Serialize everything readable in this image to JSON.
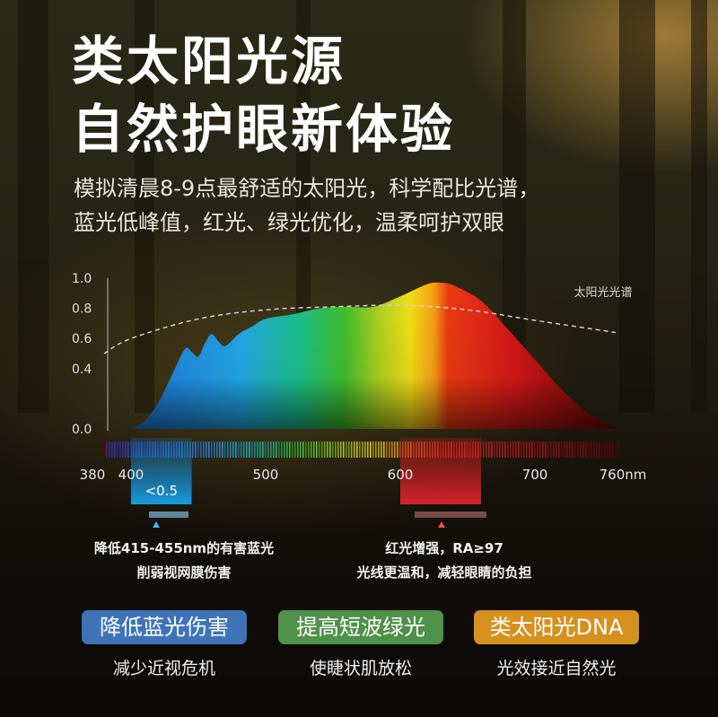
{
  "headline": {
    "line1": "类太阳光源",
    "line2": "自然护眼新体验"
  },
  "subtitle": {
    "line1": "模拟清晨8-9点最舒适的太阳光，科学配比光谱，",
    "line2": "蓝光低峰值，红光、绿光优化，温柔呵护双眼"
  },
  "chart_data": {
    "type": "area",
    "legend": "太阳光光谱",
    "y_ticks": [
      "1.0",
      "0.8",
      "0.6",
      "0.4",
      "0.0"
    ],
    "y_tick_values": [
      1.0,
      0.8,
      0.6,
      0.4,
      0.0
    ],
    "x_ticks": [
      "380",
      "400",
      "500",
      "600",
      "700",
      "760nm"
    ],
    "x_tick_values": [
      380,
      400,
      500,
      600,
      700,
      760
    ],
    "xlim": [
      380,
      760
    ],
    "ylim": [
      0,
      1.0
    ],
    "led_spectrum": {
      "x": [
        400,
        410,
        420,
        430,
        440,
        445,
        450,
        455,
        460,
        465,
        470,
        480,
        490,
        500,
        520,
        540,
        560,
        580,
        600,
        620,
        630,
        640,
        660,
        680,
        700,
        720,
        740,
        760
      ],
      "y": [
        0.0,
        0.05,
        0.17,
        0.35,
        0.53,
        0.51,
        0.48,
        0.57,
        0.63,
        0.58,
        0.55,
        0.63,
        0.68,
        0.73,
        0.76,
        0.8,
        0.81,
        0.81,
        0.88,
        0.96,
        0.97,
        0.95,
        0.85,
        0.66,
        0.46,
        0.26,
        0.1,
        0.01
      ]
    },
    "sunlight_curve": {
      "x": [
        380,
        400,
        450,
        500,
        550,
        600,
        650,
        700,
        760
      ],
      "y": [
        0.5,
        0.6,
        0.73,
        0.79,
        0.81,
        0.82,
        0.79,
        0.72,
        0.64
      ]
    },
    "annotations": [
      {
        "label": "<0.5",
        "x_range": [
          400,
          445
        ]
      },
      {
        "label": "",
        "x_range": [
          600,
          660
        ]
      }
    ]
  },
  "notes": {
    "blue": {
      "line1": "降低415-455nm的有害蓝光",
      "line2": "削弱视网膜伤害"
    },
    "red": {
      "line1": "红光增强，RA≥97",
      "line2": "光线更温和，减轻眼睛的负担"
    }
  },
  "features": [
    {
      "badge": "降低蓝光伤害",
      "caption": "减少近视危机",
      "color": "#3e73b8"
    },
    {
      "badge": "提高短波绿光",
      "caption": "使睫状肌放松",
      "color": "#4f9148"
    },
    {
      "badge": "类太阳光DNA",
      "caption": "光效接近自然光",
      "color": "#d6901e"
    }
  ]
}
